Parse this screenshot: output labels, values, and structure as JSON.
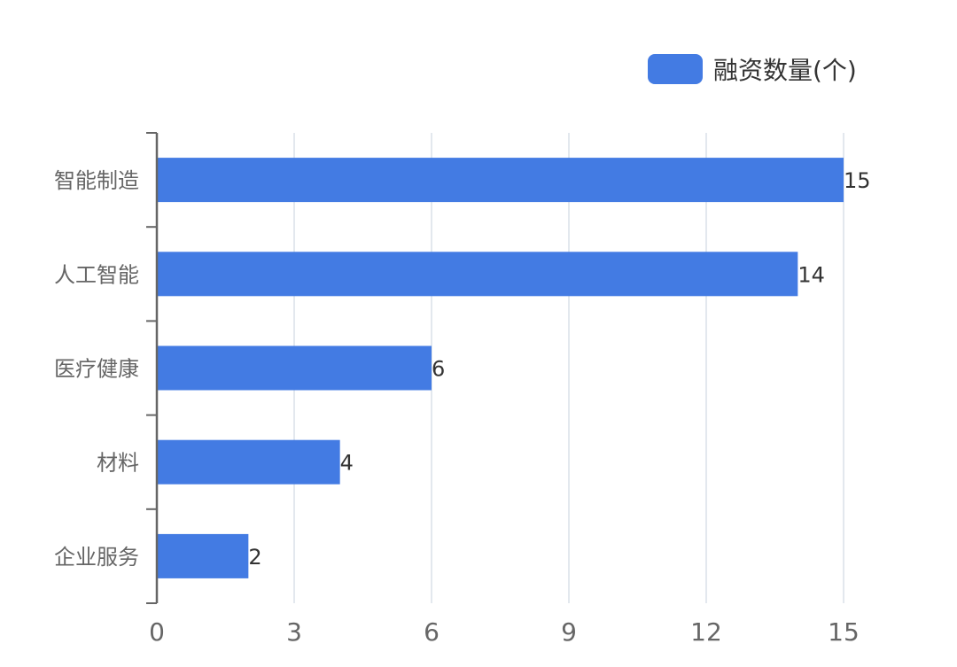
{
  "chart_data": {
    "type": "bar",
    "orientation": "horizontal",
    "categories": [
      "智能制造",
      "人工智能",
      "医疗健康",
      "材料",
      "企业服务"
    ],
    "series": [
      {
        "name": "融资数量(个)",
        "values": [
          15,
          14,
          6,
          4,
          2
        ]
      }
    ],
    "x_ticks": [
      "0",
      "3",
      "6",
      "9",
      "12",
      "15"
    ],
    "xlim": [
      0,
      15
    ],
    "grid": "vertical",
    "legend": "top-right",
    "data_labels": true,
    "colors": {
      "bar": "#437be3",
      "grid": "#e3e8ee",
      "axis": "#666666",
      "tick_text": "#666666",
      "label_text": "#333333"
    }
  }
}
